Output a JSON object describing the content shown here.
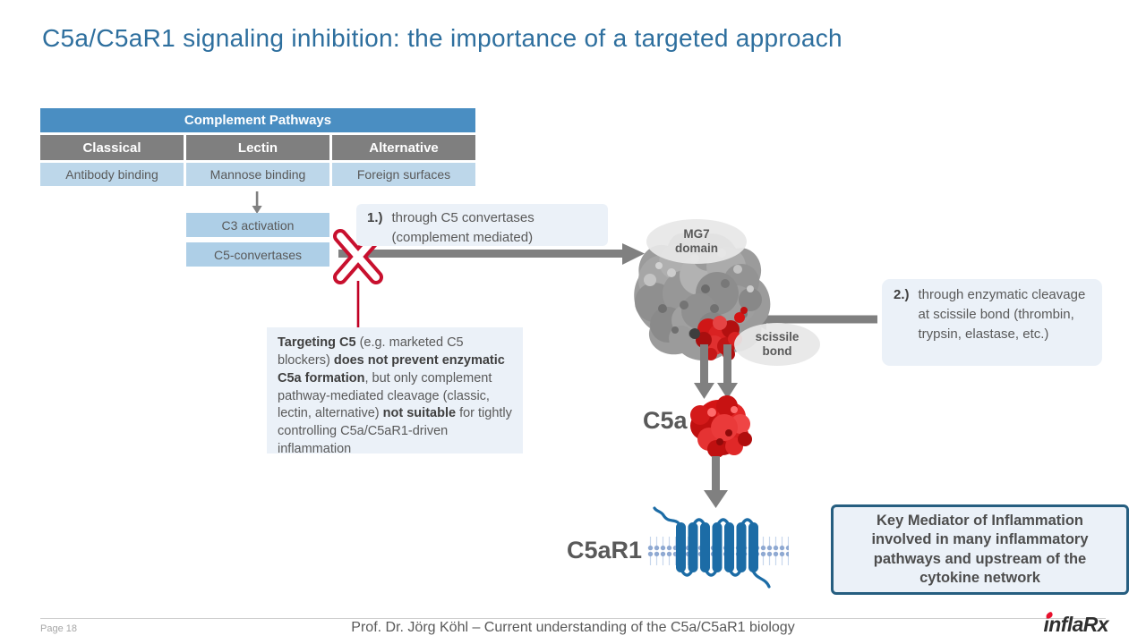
{
  "title": "C5a/C5aR1 signaling inhibition: the importance of a targeted approach",
  "table": {
    "header": "Complement Pathways",
    "columns": [
      "Classical",
      "Lectin",
      "Alternative"
    ],
    "cells": [
      "Antibody binding",
      "Mannose binding",
      "Foreign surfaces"
    ]
  },
  "flow": {
    "c3": "C3 activation",
    "c5": "C5-convertases"
  },
  "notes": {
    "one": {
      "num": "1.)",
      "text": "through C5 convertases (complement mediated)"
    },
    "two": {
      "num": "2.)",
      "text": "through enzymatic cleavage at scissile bond (thrombin, trypsin, elastase, etc.)"
    }
  },
  "callout": {
    "segments": [
      {
        "t": "Targeting C5",
        "b": true
      },
      {
        "t": " (e.g. marketed C5 blockers) ",
        "b": false
      },
      {
        "t": "does not prevent enzymatic C5a formation",
        "b": true
      },
      {
        "t": ", but only complement pathway-mediated cleavage (classic, lectin, alternative) ",
        "b": false
      },
      {
        "t": "not suitable",
        "b": true
      },
      {
        "t": " for tightly controlling C5a/C5aR1-driven inflammation",
        "b": false
      }
    ]
  },
  "protein": {
    "mg7_label": "MG7 domain",
    "scissile_label": "scissile bond",
    "c5a_label": "C5a",
    "c5ar1_label": "C5aR1"
  },
  "key_box": "Key Mediator of Inflammation involved in many inflammatory pathways and upstream of the cytokine network",
  "footer": {
    "page": "Page 18",
    "credit": "Prof. Dr. Jörg Köhl – Current understanding of the C5a/C5aR1 biology",
    "logo_infla": "infla",
    "logo_rx": "Rx"
  },
  "icons": {
    "blocked-x-icon": "outlined red X over arrow",
    "flow-arrow-icon": "gray block arrow"
  },
  "colors": {
    "title": "#2E6F9E",
    "table_header_bg": "#4A8EC2",
    "table_subheader_bg": "#7F7F7F",
    "cell_blue_bg": "#BDD7EA",
    "note_bg": "#EBF1F8",
    "arrow_gray": "#808080",
    "blocked_red": "#C8102E",
    "protein_red": "#D41414",
    "receptor_blue": "#1C6CA6",
    "keybox_border": "#265E80",
    "logo_accent_red": "#E8112D"
  }
}
